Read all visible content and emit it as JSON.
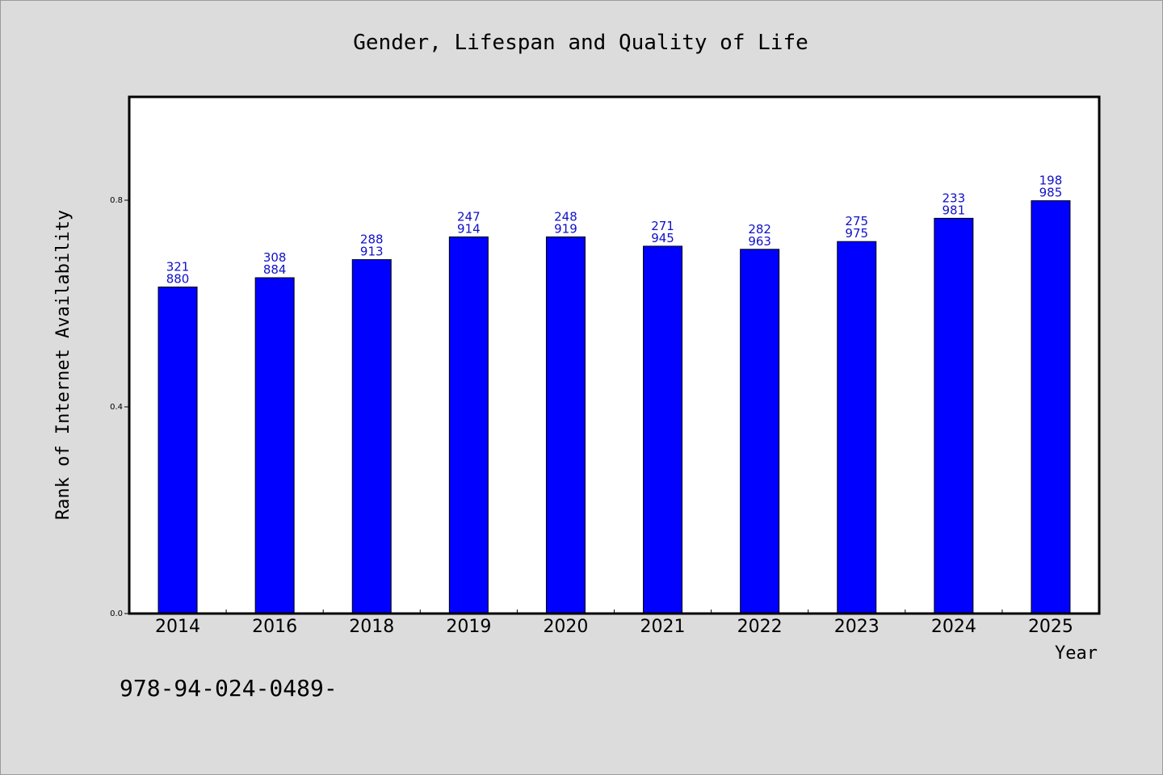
{
  "chart_data": {
    "type": "bar",
    "title": "Gender, Lifespan and Quality of Life",
    "xlabel": "Year",
    "ylabel": "Rank of Internet Availability",
    "categories": [
      "2014",
      "2016",
      "2018",
      "2019",
      "2020",
      "2021",
      "2022",
      "2023",
      "2024",
      "2025"
    ],
    "values": [
      0.632,
      0.65,
      0.685,
      0.729,
      0.729,
      0.711,
      0.705,
      0.72,
      0.765,
      0.799
    ],
    "data_labels_top": [
      "321",
      "308",
      "288",
      "247",
      "248",
      "271",
      "282",
      "275",
      "233",
      "198"
    ],
    "data_labels_bottom": [
      "880",
      "884",
      "913",
      "914",
      "919",
      "945",
      "963",
      "975",
      "981",
      "985"
    ],
    "ylim": [
      0,
      1.0
    ],
    "yticks": [
      0.0,
      0.4,
      0.8
    ],
    "ytick_labels": [
      "0.0",
      "0.4",
      "0.8"
    ],
    "grid": false,
    "bar_color": "#0000ff",
    "label_color": "#1010c8"
  },
  "footnote": "978-94-024-0489-"
}
